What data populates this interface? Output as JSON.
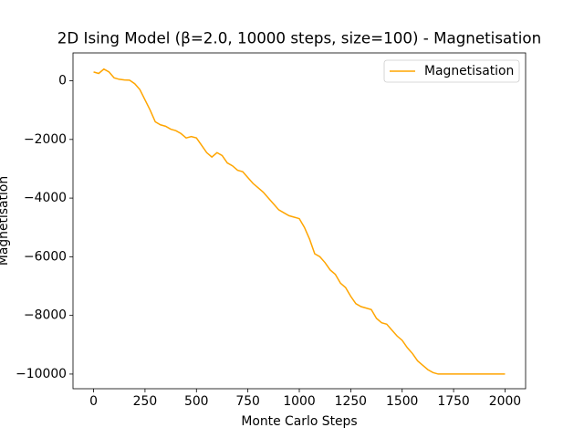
{
  "chart_data": {
    "type": "line",
    "title": "2D Ising Model (β=2.0, 10000 steps, size=100) - Magnetisation",
    "x_label": "Monte Carlo Steps",
    "y_label": "Magnetisation",
    "x": [
      0,
      25,
      50,
      75,
      100,
      125,
      150,
      175,
      200,
      225,
      250,
      275,
      300,
      325,
      350,
      375,
      400,
      425,
      450,
      475,
      500,
      525,
      550,
      575,
      600,
      625,
      650,
      675,
      700,
      725,
      750,
      775,
      800,
      825,
      850,
      875,
      900,
      925,
      950,
      975,
      1000,
      1025,
      1050,
      1075,
      1100,
      1125,
      1150,
      1175,
      1200,
      1225,
      1250,
      1275,
      1300,
      1325,
      1350,
      1375,
      1400,
      1425,
      1450,
      1475,
      1500,
      1525,
      1550,
      1575,
      1600,
      1625,
      1650,
      1675,
      1700,
      1750,
      1800,
      1850,
      1900,
      1950,
      2000
    ],
    "series": [
      {
        "name": "Magnetisation",
        "color": "#ffa500",
        "values": [
          300,
          250,
          400,
          300,
          100,
          50,
          30,
          20,
          -100,
          -300,
          -650,
          -1000,
          -1400,
          -1500,
          -1550,
          -1650,
          -1700,
          -1800,
          -1950,
          -1900,
          -1950,
          -2200,
          -2450,
          -2600,
          -2450,
          -2550,
          -2800,
          -2900,
          -3050,
          -3100,
          -3300,
          -3500,
          -3650,
          -3800,
          -4000,
          -4200,
          -4400,
          -4500,
          -4600,
          -4650,
          -4700,
          -5000,
          -5400,
          -5900,
          -6000,
          -6200,
          -6450,
          -6600,
          -6900,
          -7050,
          -7350,
          -7600,
          -7700,
          -7750,
          -7800,
          -8100,
          -8250,
          -8300,
          -8500,
          -8700,
          -8850,
          -9100,
          -9300,
          -9550,
          -9700,
          -9850,
          -9950,
          -10000,
          -10000,
          -10000,
          -10000,
          -10000,
          -10000,
          -10000,
          -10000
        ]
      }
    ],
    "xlim": [
      -100,
      2100
    ],
    "ylim": [
      -10500,
      950
    ],
    "xticks": [
      0,
      250,
      500,
      750,
      1000,
      1250,
      1500,
      1750,
      2000
    ],
    "yticks": [
      0,
      {
        "value": -2000,
        "label": "−2000"
      },
      {
        "value": -4000,
        "label": "−4000"
      },
      {
        "value": -6000,
        "label": "−6000"
      },
      {
        "value": -8000,
        "label": "−8000"
      },
      {
        "value": -10000,
        "label": "−10000"
      }
    ],
    "legend": "upper right"
  }
}
